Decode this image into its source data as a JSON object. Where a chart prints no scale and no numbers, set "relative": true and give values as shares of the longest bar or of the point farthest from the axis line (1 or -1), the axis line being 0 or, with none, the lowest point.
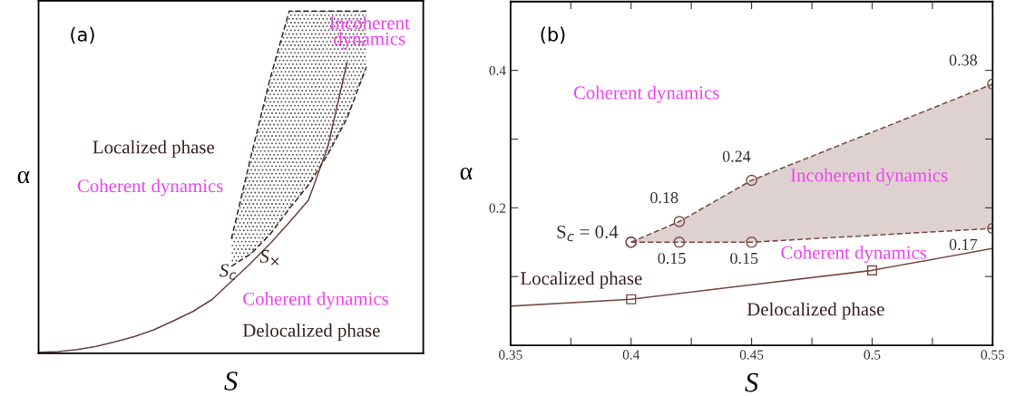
{
  "chart_data": [
    {
      "type": "line",
      "relative": true,
      "xlabel": "S",
      "ylabel": "α",
      "tick_labels": false,
      "grid": false,
      "legend": false,
      "categories": [
        null,
        null,
        null,
        null,
        null,
        null,
        null,
        null,
        null,
        null,
        null,
        null,
        null,
        null,
        null,
        null,
        null,
        null,
        null,
        null
      ],
      "series": [
        {
          "color": "#6b4440",
          "line_style": "solid",
          "values": [
            0.003,
            0.005,
            0.011,
            0.02,
            0.034,
            0.049,
            0.069,
            0.095,
            0.122,
            0.157,
            0.21,
            0.263,
            0.32,
            0.382,
            0.448,
            0.603,
            0.85,
            null,
            null,
            null
          ]
        },
        {
          "color": "#3a2a28",
          "line_style": "dashed",
          "values": [
            null,
            null,
            null,
            null,
            null,
            null,
            null,
            null,
            null,
            null,
            0.334,
            0.572,
            0.801,
            1,
            1,
            1,
            1,
            1,
            null,
            null
          ],
          "lower": [
            null,
            null,
            null,
            null,
            null,
            null,
            null,
            null,
            null,
            null,
            0.254,
            0.29,
            0.347,
            0.422,
            0.492,
            0.581,
            0.687,
            0.837,
            null,
            null
          ],
          "upper": [
            null,
            null,
            null,
            null,
            null,
            null,
            null,
            null,
            null,
            null,
            0.334,
            0.572,
            0.801,
            1,
            1,
            1,
            1,
            1,
            null,
            null
          ]
        },
        {
          "color": "#3a2a28",
          "line_style": "dashed",
          "values": [
            null,
            null,
            null,
            null,
            null,
            null,
            null,
            null,
            null,
            null,
            0.254,
            0.29,
            0.347,
            0.422,
            0.492,
            0.581,
            0.687,
            0.837,
            null,
            null
          ]
        }
      ],
      "annotations": [
        "(a)",
        "Localized phase",
        "Coherent dynamics",
        "Incoherent\ndynamics",
        "S$_{c}$",
        "S$_{×}$",
        "Coherent dynamics",
        "Delocalized phase"
      ]
    },
    {
      "type": "line",
      "xlabel": "S",
      "ylabel": "α",
      "grid": false,
      "legend": false,
      "xlim": [
        0.35,
        0.55
      ],
      "ylim": [
        0,
        0.5
      ],
      "xticks": [
        0.35,
        {
          "value": 0.375,
          "label": null
        },
        0.4,
        {
          "value": 0.425,
          "label": null
        },
        0.45,
        {
          "value": 0.475,
          "label": null
        },
        0.5,
        {
          "value": 0.525,
          "label": null
        },
        0.55
      ],
      "yticks": [
        {
          "value": 0.1,
          "label": null
        },
        0.2,
        {
          "value": 0.3,
          "label": null
        },
        0.4
      ],
      "series": [
        {
          "color": "#7a4a44",
          "line_style": "solid",
          "marker": "none",
          "x": [
            0.35,
            0.4,
            0.5,
            0.55
          ],
          "values": [
            0.057,
            0.067,
            0.109,
            0.141
          ]
        },
        {
          "type": "scatter",
          "color": "#7a4a44",
          "marker": "square",
          "x": [
            0.4,
            0.5
          ],
          "values": [
            0.067,
            0.109
          ]
        },
        {
          "color": "#7a4a44",
          "line_style": "dashed",
          "marker": "circle",
          "x": [
            0.4,
            0.42,
            0.45,
            0.55
          ],
          "values": [
            0.15,
            0.18,
            0.24,
            0.38
          ],
          "value_labels": [
            null,
            "0.18",
            "0.24",
            "0.38"
          ],
          "lower": [
            0.15,
            0.15,
            0.15,
            0.17
          ],
          "upper": [
            0.15,
            0.18,
            0.24,
            0.38
          ]
        },
        {
          "color": "#7a4a44",
          "line_style": "dashed",
          "marker": "circle",
          "x": [
            0.4,
            0.42,
            0.45,
            0.55
          ],
          "values": [
            0.15,
            0.15,
            0.15,
            0.17
          ],
          "value_labels": [
            null,
            "0.15",
            "0.15",
            "0.17"
          ]
        }
      ],
      "annotations": [
        "(b)",
        "Coherent dynamics",
        "Incoherent dynamics",
        "Coherent dynamics",
        "Localized phase",
        "Delocalized phase",
        {
          "text": "S$_{c}$ = 0.4",
          "x": 0.4,
          "y": 0.15
        }
      ]
    }
  ]
}
